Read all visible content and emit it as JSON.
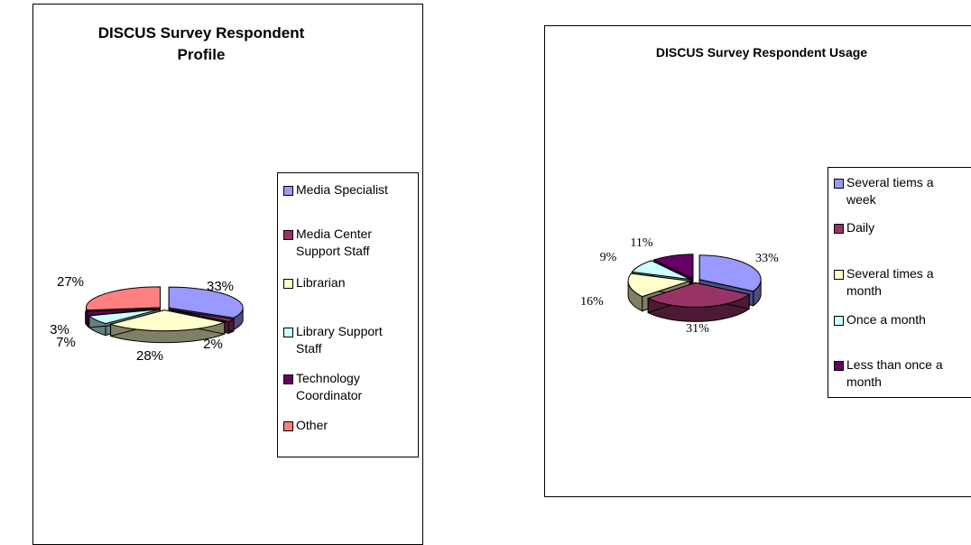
{
  "chart_data": [
    {
      "type": "pie",
      "title": "DISCUS Survey Respondent Profile",
      "title_lines": [
        "DISCUS Survey Respondent",
        "Profile"
      ],
      "three_d": true,
      "legend_position": "right",
      "slices": [
        {
          "label": "Media Specialist",
          "value": 33,
          "value_label": "33%",
          "color": "#9999ff",
          "side_color": "#4d4d80"
        },
        {
          "label": "Media Center Support Staff",
          "label_lines": [
            "Media Center",
            "Support Staff"
          ],
          "value": 2,
          "value_label": "2%",
          "color": "#993366",
          "side_color": "#4d1a33"
        },
        {
          "label": "Librarian",
          "value": 28,
          "value_label": "28%",
          "color": "#ffffcc",
          "side_color": "#808066"
        },
        {
          "label": "Library Support Staff",
          "label_lines": [
            "Library Support",
            "Staff"
          ],
          "value": 7,
          "value_label": "7%",
          "color": "#ccffff",
          "side_color": "#668080"
        },
        {
          "label": "Technology Coordinator",
          "label_lines": [
            "Technology",
            "Coordinator"
          ],
          "value": 3,
          "value_label": "3%",
          "color": "#660066",
          "side_color": "#330033"
        },
        {
          "label": "Other",
          "value": 27,
          "value_label": "27%",
          "color": "#ff8080",
          "side_color": "#804040"
        }
      ]
    },
    {
      "type": "pie",
      "title": "DISCUS Survey Respondent Usage",
      "three_d": true,
      "legend_position": "right",
      "slices": [
        {
          "label": "Several tiems a week",
          "label_lines": [
            "Several tiems a",
            "week"
          ],
          "value": 33,
          "value_label": "33%",
          "color": "#9999ff",
          "side_color": "#4d4d80"
        },
        {
          "label": "Daily",
          "value": 31,
          "value_label": "31%",
          "color": "#993366",
          "side_color": "#4d1a33"
        },
        {
          "label": "Several times a month",
          "label_lines": [
            "Several times a",
            "month"
          ],
          "value": 16,
          "value_label": "16%",
          "color": "#ffffcc",
          "side_color": "#808066"
        },
        {
          "label": "Once a month",
          "value": 9,
          "value_label": "9%",
          "color": "#ccffff",
          "side_color": "#668080"
        },
        {
          "label": "Less than once a month",
          "label_lines": [
            "Less than once a",
            "month"
          ],
          "value": 11,
          "value_label": "11%",
          "color": "#660066",
          "side_color": "#330033"
        }
      ]
    }
  ]
}
